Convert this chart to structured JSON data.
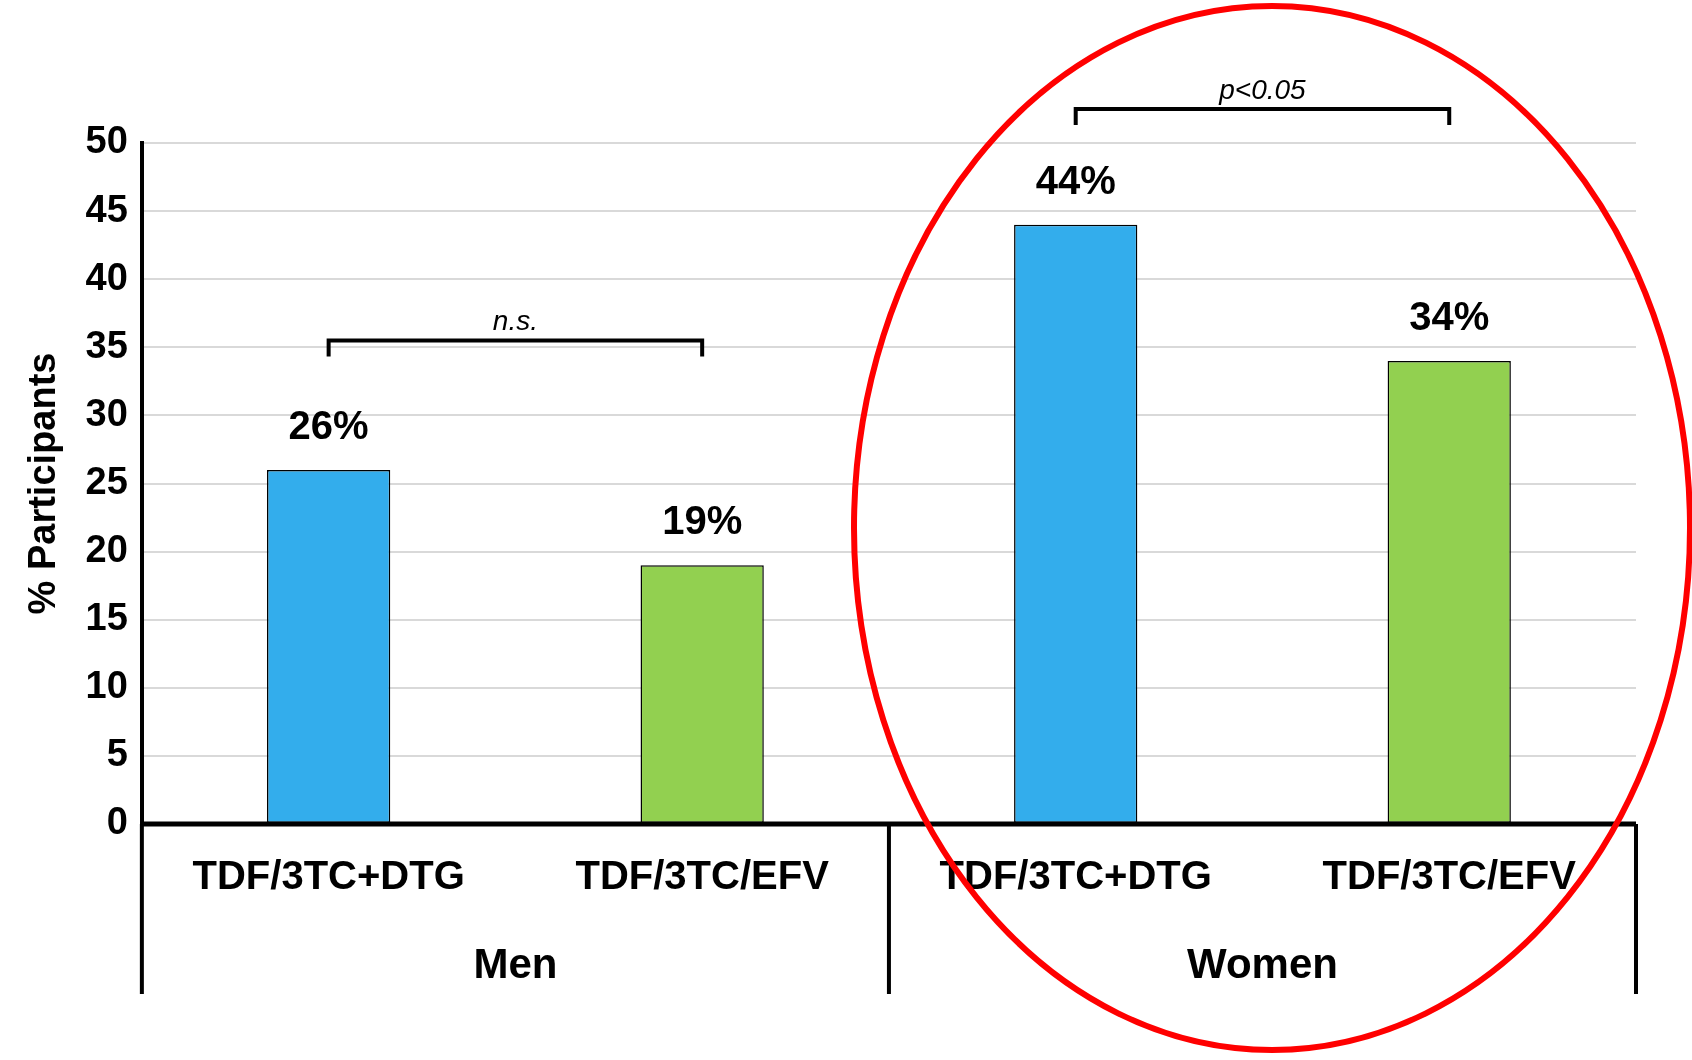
{
  "chart_data": {
    "type": "bar",
    "ylabel": "% Participants",
    "categories": [
      "TDF/3TC+DTG",
      "TDF/3TC/EFV",
      "TDF/3TC+DTG",
      "TDF/3TC/EFV"
    ],
    "values": [
      26,
      19,
      44,
      34
    ],
    "colors": [
      "#33adec",
      "#92d050",
      "#33adec",
      "#92d050"
    ],
    "value_labels": [
      "26%",
      "19%",
      "44%",
      "34%"
    ],
    "ylim": [
      0,
      50
    ],
    "yticks": [
      0,
      5,
      10,
      15,
      20,
      25,
      30,
      35,
      40,
      45,
      50
    ],
    "grid": "y",
    "legend": false,
    "annotations": [
      "n.s.",
      "p<0.05",
      "Men",
      "Women"
    ]
  }
}
